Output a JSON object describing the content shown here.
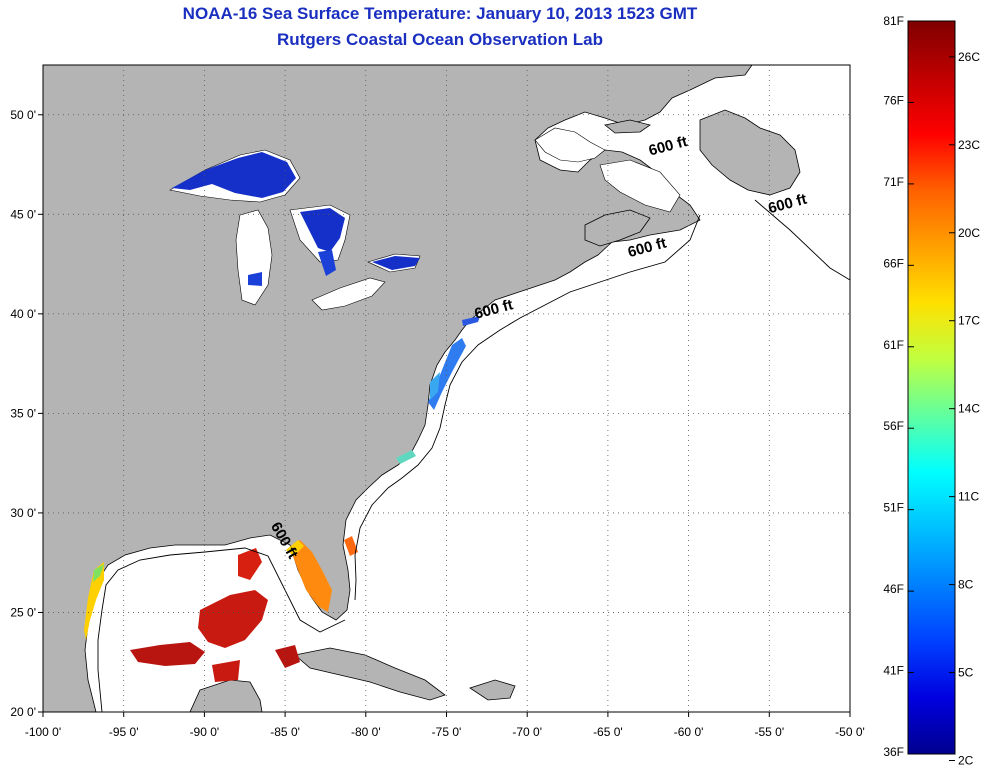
{
  "title": "NOAA-16 Sea Surface Temperature:  January 10, 2013 1523 GMT",
  "subtitle": "Rutgers Coastal Ocean Observation Lab",
  "axes": {
    "x_ticks": [
      "-100 0'",
      "-95 0'",
      "-90 0'",
      "-85 0'",
      "-80 0'",
      "-75 0'",
      "-70 0'",
      "-65 0'",
      "-60 0'",
      "-55 0'",
      "-50 0'"
    ],
    "x_values": [
      -100,
      -95,
      -90,
      -85,
      -80,
      -75,
      -70,
      -65,
      -60,
      -55,
      -50
    ],
    "y_ticks": [
      "20 0'",
      "25 0'",
      "30 0'",
      "35 0'",
      "40 0'",
      "45 0'",
      "50 0'"
    ],
    "y_values": [
      20,
      25,
      30,
      35,
      40,
      45,
      50
    ],
    "lon_range": [
      -100,
      -50
    ],
    "lat_range": [
      20,
      52.5
    ],
    "grid": "dotted"
  },
  "contour_labels": [
    {
      "text": "600 ft",
      "lon": -61.2,
      "lat": 48.2
    },
    {
      "text": "600 ft",
      "lon": -53.8,
      "lat": 45.3
    },
    {
      "text": "600 ft",
      "lon": -62.5,
      "lat": 43.1
    },
    {
      "text": "600 ft",
      "lon": -72.0,
      "lat": 40.0
    },
    {
      "text": "600 ft",
      "lon": -85.3,
      "lat": 28.5
    }
  ],
  "colorbar": {
    "f_labels": [
      "81F",
      "76F",
      "71F",
      "66F",
      "61F",
      "56F",
      "51F",
      "46F",
      "41F",
      "36F"
    ],
    "c_labels": [
      "26C",
      "23C",
      "20C",
      "17C",
      "14C",
      "11C",
      "8C",
      "5C",
      "2C"
    ],
    "colors": [
      "#7f0000",
      "#c00000",
      "#ff0000",
      "#ff6000",
      "#ffa000",
      "#ffe000",
      "#c0ff40",
      "#60ffa0",
      "#00ffff",
      "#00c0ff",
      "#0080ff",
      "#0040ff",
      "#0000e0",
      "#00008f"
    ]
  },
  "colors": {
    "land": "#b4b4b4",
    "ocean": "#ffffff",
    "title": "#1a2fc0",
    "lake": "#1530c8"
  }
}
